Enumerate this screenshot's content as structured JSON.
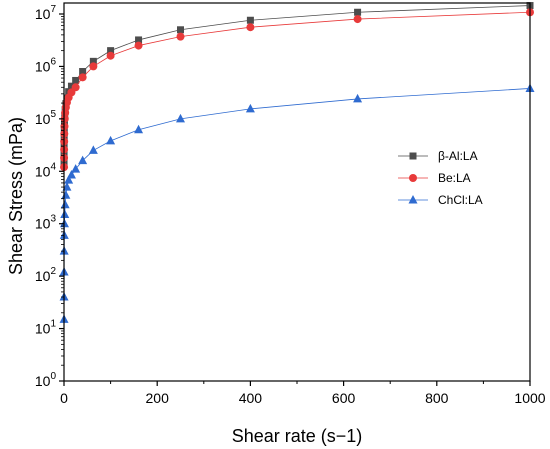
{
  "chart_data": {
    "type": "scatter",
    "xlabel": "Shear rate (s−1)",
    "ylabel": "Shear Stress (mPa)",
    "xlim": [
      0,
      1000
    ],
    "ylim": [
      1,
      20000000
    ],
    "y_scale": "log",
    "x_ticks": [
      "0",
      "200",
      "400",
      "600",
      "800",
      "1000"
    ],
    "y_ticks": [
      {
        "base": "10",
        "exp": "0"
      },
      {
        "base": "10",
        "exp": "1"
      },
      {
        "base": "10",
        "exp": "2"
      },
      {
        "base": "10",
        "exp": "3"
      },
      {
        "base": "10",
        "exp": "4"
      },
      {
        "base": "10",
        "exp": "5"
      },
      {
        "base": "10",
        "exp": "6"
      },
      {
        "base": "10",
        "exp": "7"
      }
    ],
    "grid": false,
    "legend_position": "right",
    "series": [
      {
        "name": "β-Al:LA",
        "color": "#4d4d4d",
        "marker": "square",
        "x": [
          0.1,
          0.16,
          0.25,
          0.4,
          0.63,
          1,
          1.6,
          2.5,
          4,
          6.3,
          10,
          16,
          25,
          40,
          63,
          100,
          160,
          250,
          400,
          630,
          1000
        ],
        "y": [
          15000,
          22000,
          32000,
          45000,
          62000,
          85000,
          115000,
          150000,
          195000,
          250000,
          330000,
          420000,
          540000,
          800000,
          1250000,
          2000000,
          3200000,
          5000000,
          7600000,
          10800000,
          14500000
        ]
      },
      {
        "name": "Be:LA",
        "color": "#e83a3a",
        "marker": "circle",
        "x": [
          0.1,
          0.16,
          0.25,
          0.4,
          0.63,
          1,
          1.6,
          2.5,
          4,
          6.3,
          10,
          16,
          25,
          40,
          63,
          100,
          160,
          250,
          400,
          630,
          1000
        ],
        "y": [
          12000,
          18000,
          26000,
          37000,
          52000,
          72000,
          100000,
          130000,
          165000,
          205000,
          255000,
          320000,
          400000,
          620000,
          1000000,
          1600000,
          2500000,
          3700000,
          5600000,
          8000000,
          10800000
        ]
      },
      {
        "name": "ChCl:LA",
        "color": "#2f6bd0",
        "marker": "triangle",
        "x": [
          0.1,
          0.16,
          0.25,
          0.4,
          0.63,
          1,
          1.6,
          2.5,
          4,
          6.3,
          10,
          16,
          25,
          40,
          63,
          100,
          160,
          250,
          400,
          630,
          1000
        ],
        "y": [
          15,
          40,
          120,
          300,
          600,
          1000,
          1500,
          2300,
          3500,
          5000,
          6800,
          8500,
          11000,
          16000,
          25000,
          38000,
          62000,
          100000,
          155000,
          240000,
          380000
        ]
      }
    ]
  }
}
